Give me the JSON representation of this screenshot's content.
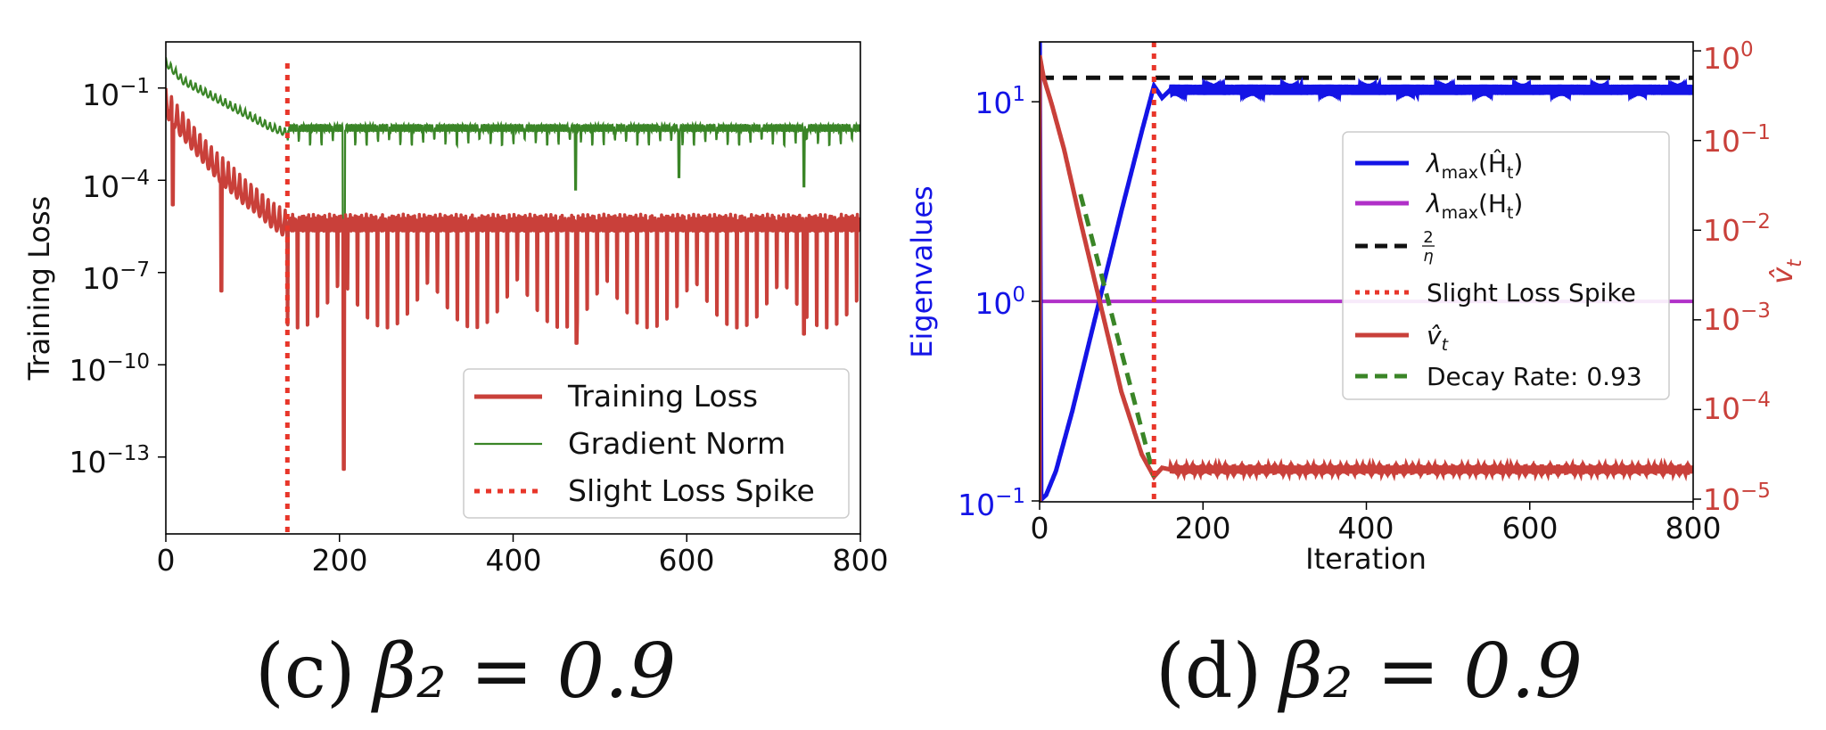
{
  "chart_data": [
    {
      "type": "line",
      "panel": "c",
      "caption": "(c) β₂ = 0.9",
      "caption_text": "(c)",
      "caption_math": "β₂ = 0.9",
      "ylabel": "Training Loss",
      "xlabel": "",
      "xlim": [
        0,
        800
      ],
      "ylim_log10": [
        -15.5,
        0.5
      ],
      "yscale": "log",
      "xticks": [
        "0",
        "200",
        "400",
        "600",
        "800"
      ],
      "yticks": [
        {
          "base": "10",
          "exp": "−1",
          "value_log10": -1
        },
        {
          "base": "10",
          "exp": "−4",
          "value_log10": -4
        },
        {
          "base": "10",
          "exp": "−7",
          "value_log10": -7
        },
        {
          "base": "10",
          "exp": "−10",
          "value_log10": -10
        },
        {
          "base": "10",
          "exp": "−13",
          "value_log10": -13
        }
      ],
      "legend_position": "lower-right",
      "legend": [
        "Training Loss",
        "Gradient Norm",
        "Slight Loss Spike"
      ],
      "spike_iteration": 140,
      "series": [
        {
          "name": "Training Loss",
          "color": "#c9403a",
          "description": "oscillating decay to ~1e-5 by iteration 140, then band 1e-6..1e-5 with dips to 1e-8..1e-9",
          "x": [
            0,
            15,
            30,
            45,
            60,
            75,
            90,
            105,
            120,
            140,
            200,
            400,
            800
          ],
          "log10_y": [
            -1.0,
            -1.6,
            -2.1,
            -2.6,
            -3.1,
            -3.5,
            -3.9,
            -4.2,
            -4.6,
            -5.0,
            -5.1,
            -5.1,
            -5.1
          ]
        },
        {
          "name": "Gradient Norm",
          "color": "#3a8527",
          "description": "oscillating decay from ~1 to ~1e-2.3 at iteration 140, then flat band",
          "x": [
            0,
            20,
            40,
            60,
            80,
            100,
            120,
            140,
            200,
            400,
            800
          ],
          "log10_y": [
            0.0,
            -0.6,
            -0.9,
            -1.2,
            -1.5,
            -1.8,
            -2.1,
            -2.3,
            -2.3,
            -2.3,
            -2.3
          ]
        }
      ]
    },
    {
      "type": "line",
      "panel": "d",
      "caption": "(d) β₂ = 0.9",
      "caption_text": "(d)",
      "caption_math": "β₂ = 0.9",
      "xlabel": "Iteration",
      "ylabel": "Eigenvalues",
      "y2label": "v̂_t",
      "xlim": [
        0,
        800
      ],
      "ylim_log10": [
        -1.0,
        1.3
      ],
      "y2lim_log10": [
        -5.0,
        0.1
      ],
      "yscale": "log",
      "y2scale": "log",
      "xticks": [
        "0",
        "200",
        "400",
        "600",
        "800"
      ],
      "yticks": [
        {
          "base": "10",
          "exp": "−1",
          "value_log10": -1
        },
        {
          "base": "10",
          "exp": "0",
          "value_log10": 0
        },
        {
          "base": "10",
          "exp": "1",
          "value_log10": 1
        }
      ],
      "y2ticks": [
        {
          "base": "10",
          "exp": "−5",
          "value_log10": -5
        },
        {
          "base": "10",
          "exp": "−4",
          "value_log10": -4
        },
        {
          "base": "10",
          "exp": "−3",
          "value_log10": -3
        },
        {
          "base": "10",
          "exp": "−2",
          "value_log10": -2
        },
        {
          "base": "10",
          "exp": "−1",
          "value_log10": -1
        },
        {
          "base": "10",
          "exp": "0",
          "value_log10": 0
        }
      ],
      "legend_position": "center-right",
      "legend": [
        "λmax(Ĥt)",
        "λmax(Ht)",
        "2/η",
        "Slight Loss Spike",
        "v̂t",
        "Decay Rate: 0.93"
      ],
      "legend_text": {
        "lambda_sym": "λ",
        "max_sub": "max",
        "hhat_arg": "(Ĥ",
        "h_arg": "(H",
        "t_sub": "t",
        "close": ")",
        "frac_num": "2",
        "frac_den": "η",
        "spike": "Slight Loss Spike",
        "vhat": "v̂",
        "decay": "Decay Rate: 0.93"
      },
      "spike_iteration": 140,
      "threshold_log10": 1.12,
      "colors": {
        "lambda_hat": "#1414e6",
        "lambda": "#b030c8",
        "threshold": "#111111",
        "spike": "#e8362a",
        "vhat": "#c9403a",
        "decay": "#3a8527",
        "left_axis": "#1414e6",
        "right_axis": "#c9403a"
      },
      "series": [
        {
          "name": "λmax(Ĥt)",
          "axis": "left",
          "color": "#1414e6",
          "x": [
            0,
            8,
            20,
            40,
            70,
            100,
            125,
            140,
            150,
            160,
            800
          ],
          "log10_y": [
            -1.0,
            -0.97,
            -0.85,
            -0.55,
            -0.05,
            0.45,
            0.85,
            1.08,
            1.02,
            1.06,
            1.06
          ]
        },
        {
          "name": "λmax(Ht)",
          "axis": "left",
          "color": "#b030c8",
          "x": [
            0,
            800
          ],
          "log10_y": [
            0.0,
            0.0
          ]
        },
        {
          "name": "v̂t",
          "axis": "right",
          "color": "#c9403a",
          "x": [
            0,
            5,
            15,
            30,
            50,
            75,
            100,
            125,
            140,
            150,
            160,
            800
          ],
          "log10_y": [
            -0.05,
            -0.3,
            -0.6,
            -1.1,
            -1.9,
            -2.85,
            -3.8,
            -4.5,
            -4.75,
            -4.65,
            -4.67,
            -4.67
          ]
        },
        {
          "name": "Decay Rate: 0.93",
          "axis": "right",
          "color": "#3a8527",
          "style": "dashed",
          "x": [
            50,
            140
          ],
          "log10_y": [
            -1.6,
            -4.75
          ]
        }
      ]
    }
  ]
}
